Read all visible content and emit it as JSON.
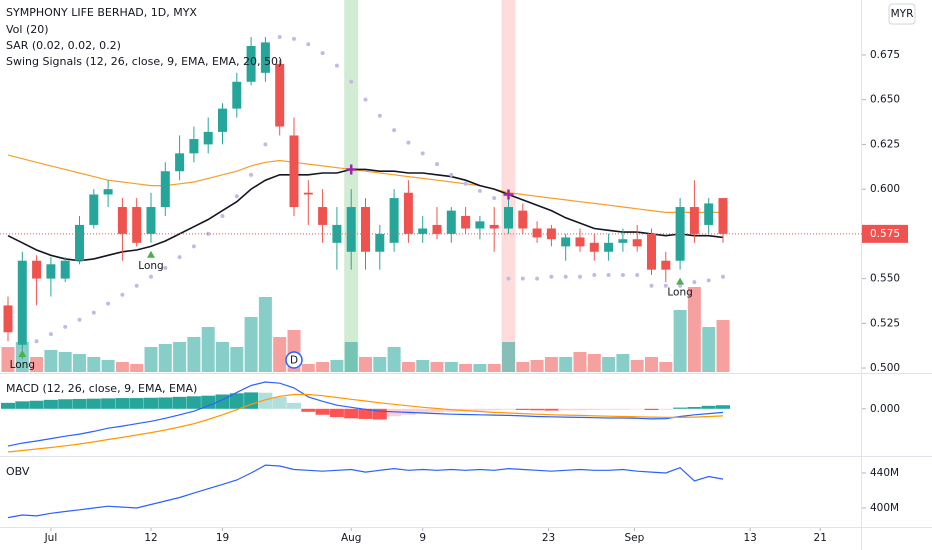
{
  "chart_data": [
    {
      "type": "candlestick",
      "title": "SYMPHONY LIFE BERHAD, 1D, MYX",
      "currency": "MYR",
      "indicators": [
        "Vol (20)",
        "SAR (0.02, 0.02, 0.2)",
        "Swing Signals (12, 26, close, 9, EMA, EMA, 20, 50)"
      ],
      "ylim": [
        0.4978,
        0.7057
      ],
      "yticks": [
        {
          "value": 0.5,
          "label": "0.500"
        },
        {
          "value": 0.525,
          "label": "0.525"
        },
        {
          "value": 0.55,
          "label": "0.550"
        },
        {
          "value": 0.575,
          "label": "0.575"
        },
        {
          "value": 0.6,
          "label": "0.600"
        },
        {
          "value": 0.625,
          "label": "0.625"
        },
        {
          "value": 0.65,
          "label": "0.650"
        },
        {
          "value": 0.675,
          "label": "0.675"
        }
      ],
      "last_price": {
        "value": 0.575,
        "label": "0.575"
      },
      "up_color": "#26a69a",
      "down_color": "#ef5350",
      "open": [
        0.535,
        0.513,
        0.56,
        0.55,
        0.55,
        0.56,
        0.58,
        0.597,
        0.59,
        0.59,
        0.575,
        0.59,
        0.61,
        0.62,
        0.625,
        0.632,
        0.645,
        0.66,
        0.665,
        0.67,
        0.63,
        0.598,
        0.59,
        0.57,
        0.565,
        0.59,
        0.565,
        0.57,
        0.598,
        0.575,
        0.58,
        0.575,
        0.585,
        0.578,
        0.58,
        0.578,
        0.588,
        0.578,
        0.578,
        0.568,
        0.573,
        0.57,
        0.565,
        0.57,
        0.572,
        0.575,
        0.56,
        0.56,
        0.59,
        0.58,
        0.595
      ],
      "high": [
        0.54,
        0.565,
        0.563,
        0.562,
        0.562,
        0.585,
        0.6,
        0.605,
        0.595,
        0.595,
        0.598,
        0.615,
        0.63,
        0.635,
        0.64,
        0.648,
        0.665,
        0.685,
        0.685,
        0.672,
        0.64,
        0.605,
        0.6,
        0.59,
        0.6,
        0.595,
        0.58,
        0.6,
        0.605,
        0.585,
        0.59,
        0.59,
        0.59,
        0.585,
        0.59,
        0.595,
        0.592,
        0.582,
        0.58,
        0.575,
        0.578,
        0.575,
        0.575,
        0.578,
        0.58,
        0.578,
        0.565,
        0.595,
        0.605,
        0.595,
        0.595
      ],
      "low": [
        0.515,
        0.505,
        0.535,
        0.54,
        0.548,
        0.558,
        0.578,
        0.59,
        0.56,
        0.568,
        0.57,
        0.585,
        0.605,
        0.615,
        0.62,
        0.625,
        0.64,
        0.658,
        0.66,
        0.63,
        0.585,
        0.58,
        0.57,
        0.555,
        0.555,
        0.555,
        0.555,
        0.565,
        0.57,
        0.57,
        0.572,
        0.57,
        0.575,
        0.572,
        0.565,
        0.575,
        0.575,
        0.57,
        0.568,
        0.56,
        0.565,
        0.56,
        0.56,
        0.565,
        0.565,
        0.552,
        0.548,
        0.555,
        0.57,
        0.575,
        0.57
      ],
      "close": [
        0.52,
        0.56,
        0.55,
        0.558,
        0.56,
        0.58,
        0.597,
        0.6,
        0.575,
        0.57,
        0.59,
        0.61,
        0.62,
        0.628,
        0.632,
        0.645,
        0.66,
        0.68,
        0.682,
        0.635,
        0.59,
        0.597,
        0.58,
        0.58,
        0.59,
        0.565,
        0.575,
        0.595,
        0.575,
        0.578,
        0.575,
        0.588,
        0.578,
        0.582,
        0.578,
        0.59,
        0.578,
        0.573,
        0.572,
        0.573,
        0.568,
        0.565,
        0.57,
        0.572,
        0.568,
        0.555,
        0.555,
        0.59,
        0.575,
        0.592,
        0.575
      ],
      "volume": {
        "vlim": [
          0,
          100
        ],
        "values": [
          25,
          30,
          15,
          22,
          20,
          18,
          15,
          12,
          10,
          8,
          25,
          28,
          30,
          35,
          45,
          30,
          25,
          55,
          75,
          35,
          42,
          8,
          10,
          12,
          30,
          15,
          15,
          25,
          10,
          12,
          10,
          10,
          8,
          8,
          8,
          30,
          10,
          12,
          15,
          15,
          20,
          18,
          15,
          18,
          12,
          15,
          10,
          62,
          85,
          45,
          52
        ]
      },
      "ema_fast": {
        "color": "#131722",
        "values": [
          0.574,
          0.57,
          0.566,
          0.563,
          0.561,
          0.56,
          0.561,
          0.563,
          0.565,
          0.566,
          0.568,
          0.571,
          0.575,
          0.579,
          0.583,
          0.588,
          0.593,
          0.6,
          0.605,
          0.608,
          0.608,
          0.608,
          0.609,
          0.609,
          0.611,
          0.611,
          0.61,
          0.61,
          0.609,
          0.609,
          0.608,
          0.607,
          0.605,
          0.602,
          0.6,
          0.597,
          0.594,
          0.591,
          0.588,
          0.584,
          0.581,
          0.578,
          0.577,
          0.576,
          0.576,
          0.575,
          0.574,
          0.575,
          0.574,
          0.574,
          0.573
        ]
      },
      "ema_slow": {
        "color": "#f59e2a",
        "values": [
          0.619,
          0.617,
          0.615,
          0.613,
          0.611,
          0.609,
          0.607,
          0.605,
          0.604,
          0.603,
          0.602,
          0.602,
          0.603,
          0.604,
          0.606,
          0.608,
          0.61,
          0.613,
          0.615,
          0.616,
          0.615,
          0.614,
          0.613,
          0.612,
          0.611,
          0.61,
          0.609,
          0.608,
          0.607,
          0.606,
          0.605,
          0.604,
          0.603,
          0.602,
          0.6,
          0.598,
          0.597,
          0.596,
          0.595,
          0.594,
          0.593,
          0.592,
          0.591,
          0.59,
          0.589,
          0.588,
          0.587,
          0.587,
          0.587,
          0.587,
          0.587
        ]
      },
      "sar": {
        "color": "#c5b8e6",
        "values": [
          null,
          0.51,
          0.515,
          0.519,
          0.523,
          0.527,
          0.531,
          0.536,
          0.541,
          0.546,
          0.551,
          0.556,
          0.562,
          0.568,
          0.575,
          0.585,
          0.596,
          0.608,
          0.625,
          0.685,
          0.684,
          0.681,
          0.676,
          0.669,
          0.66,
          0.65,
          0.641,
          0.633,
          0.626,
          0.62,
          0.614,
          0.608,
          0.603,
          0.599,
          0.595,
          0.55,
          0.55,
          0.55,
          0.551,
          0.551,
          0.551,
          0.552,
          0.552,
          0.552,
          0.552,
          0.546,
          0.546,
          0.546,
          0.548,
          0.549,
          0.551
        ]
      },
      "signals": [
        {
          "index": 1,
          "label": "Long"
        },
        {
          "index": 10,
          "label": "Long"
        },
        {
          "index": 47,
          "label": "Long"
        }
      ],
      "highlights": [
        {
          "index": 24,
          "color": "rgba(76,175,80,0.25)"
        },
        {
          "index": 35,
          "color": "rgba(255,82,82,0.2)"
        }
      ],
      "dividend": {
        "index": 20,
        "label": "D"
      }
    },
    {
      "type": "macd",
      "title": "MACD (12, 26, close, 9, EMA, EMA)",
      "ylim": [
        -0.0155,
        0.011
      ],
      "yticks": [
        {
          "value": 0,
          "label": "0.000"
        }
      ],
      "histogram": [
        0.002,
        0.0025,
        0.0027,
        0.003,
        0.0032,
        0.0033,
        0.0034,
        0.0035,
        0.0036,
        0.0036,
        0.0037,
        0.0038,
        0.004,
        0.0042,
        0.0044,
        0.0048,
        0.0052,
        0.0055,
        0.0054,
        0.004,
        0.002,
        -0.001,
        -0.002,
        -0.0028,
        -0.0032,
        -0.0034,
        -0.0036,
        -0.0025,
        -0.002,
        -0.0016,
        -0.0012,
        -0.001,
        -0.0008,
        -0.0006,
        -0.0005,
        -0.0003,
        -0.0004,
        -0.0005,
        -0.0006,
        -0.0005,
        -0.0005,
        -0.0004,
        -0.0003,
        -0.0003,
        -0.0002,
        -0.0004,
        -0.0003,
        0.0004,
        0.0006,
        0.001,
        0.0012
      ],
      "series": [
        {
          "name": "MACD",
          "color": "#2962ff",
          "values": [
            -0.0125,
            -0.0115,
            -0.0108,
            -0.01,
            -0.0092,
            -0.0085,
            -0.0076,
            -0.0065,
            -0.0058,
            -0.005,
            -0.0042,
            -0.0032,
            -0.002,
            -0.0008,
            0.001,
            0.003,
            0.0055,
            0.0078,
            0.009,
            0.0086,
            0.007,
            0.004,
            0.0025,
            0.0012,
            0.0005,
            -0.0002,
            -0.0008,
            -0.001,
            -0.0012,
            -0.0014,
            -0.0016,
            -0.0018,
            -0.0019,
            -0.002,
            -0.0021,
            -0.0022,
            -0.0024,
            -0.0026,
            -0.0027,
            -0.0028,
            -0.0029,
            -0.003,
            -0.0031,
            -0.0031,
            -0.0032,
            -0.0034,
            -0.0033,
            -0.0026,
            -0.002,
            -0.0016,
            -0.0012
          ]
        },
        {
          "name": "Signal",
          "color": "#ff9800",
          "values": [
            -0.0145,
            -0.014,
            -0.0135,
            -0.013,
            -0.0124,
            -0.0118,
            -0.0111,
            -0.0103,
            -0.0096,
            -0.0088,
            -0.008,
            -0.0071,
            -0.0061,
            -0.005,
            -0.0036,
            -0.002,
            -0.0003,
            0.0015,
            0.003,
            0.0042,
            0.0048,
            0.0048,
            0.0044,
            0.0038,
            0.0032,
            0.0026,
            0.002,
            0.0015,
            0.001,
            0.0005,
            0.0001,
            -0.0003,
            -0.0006,
            -0.0009,
            -0.0012,
            -0.0014,
            -0.0016,
            -0.0018,
            -0.002,
            -0.0021,
            -0.0022,
            -0.0024,
            -0.0025,
            -0.0026,
            -0.0027,
            -0.0028,
            -0.0029,
            -0.0029,
            -0.0028,
            -0.0026,
            -0.0024
          ]
        }
      ]
    },
    {
      "type": "line",
      "title": "OBV",
      "color": "#2962ff",
      "ylim": [
        378.3,
        457.1
      ],
      "yticks": [
        {
          "value": 400,
          "label": "400M"
        },
        {
          "value": 440,
          "label": "440M"
        }
      ],
      "values": [
        389,
        392,
        391,
        394,
        396,
        398,
        400,
        402,
        401,
        400,
        404,
        408,
        412,
        417,
        422,
        427,
        432,
        440,
        449,
        448,
        444,
        443,
        442,
        443,
        444,
        441,
        443,
        445,
        443,
        444,
        443,
        444,
        443,
        444,
        443,
        445,
        444,
        443,
        442,
        443,
        444,
        443,
        443,
        444,
        442,
        441,
        440,
        446,
        431,
        436,
        433
      ],
      "xticks": [
        {
          "value": 3,
          "label": "Jul"
        },
        {
          "value": 10,
          "label": "12"
        },
        {
          "value": 15,
          "label": "19"
        },
        {
          "value": 24,
          "label": "Aug"
        },
        {
          "value": 29,
          "label": "9"
        },
        {
          "value": 37.8,
          "label": "23"
        },
        {
          "value": 43.8,
          "label": "Sep"
        },
        {
          "value": 51.9,
          "label": "13"
        },
        {
          "value": 56.8,
          "label": "21"
        }
      ]
    }
  ]
}
